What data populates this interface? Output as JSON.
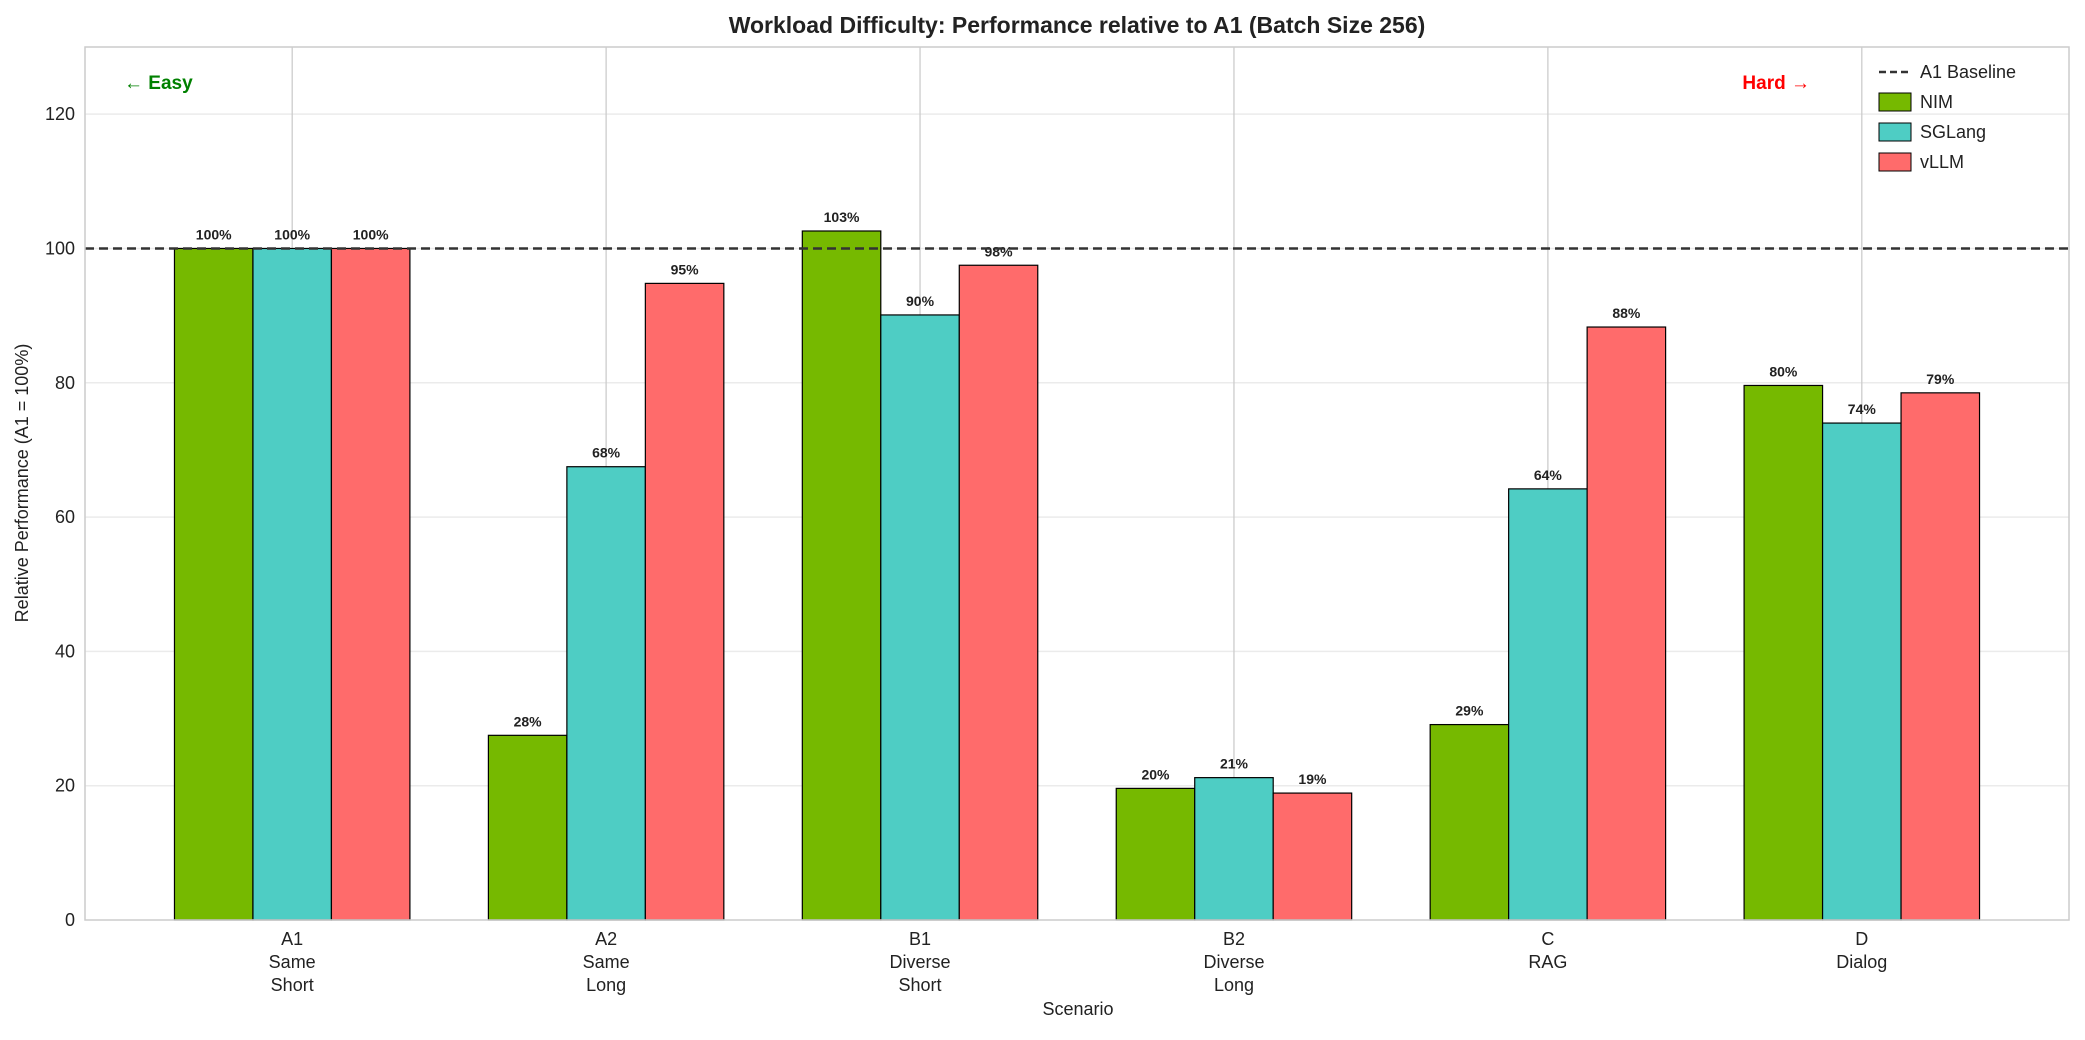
{
  "chart_data": {
    "type": "bar",
    "title": "Workload Difficulty: Performance relative to A1 (Batch Size 256)",
    "xlabel": "Scenario",
    "ylabel": "Relative Performance (A1 = 100%)",
    "categories": [
      [
        "A1",
        "Same",
        "Short"
      ],
      [
        "A2",
        "Same",
        "Long"
      ],
      [
        "B1",
        "Diverse",
        "Short"
      ],
      [
        "B2",
        "Diverse",
        "Long"
      ],
      [
        "C",
        "RAG"
      ],
      [
        "D",
        "Dialog"
      ]
    ],
    "ylim": [
      0,
      130
    ],
    "yticks": [
      0,
      20,
      40,
      60,
      80,
      100,
      120
    ],
    "grid": true,
    "legend_placement": "top-right",
    "baseline": {
      "name": "A1 Baseline",
      "value": 100,
      "color": "#333333",
      "style": "dashed"
    },
    "series": [
      {
        "name": "NIM",
        "color": "#76b900",
        "values": [
          100,
          27.5,
          102.6,
          19.6,
          29.1,
          79.6
        ],
        "labels": [
          "100%",
          "28%",
          "103%",
          "20%",
          "29%",
          "80%"
        ]
      },
      {
        "name": "SGLang",
        "color": "#4ecdc4",
        "values": [
          100,
          67.5,
          90.1,
          21.2,
          64.2,
          74.0
        ],
        "labels": [
          "100%",
          "68%",
          "90%",
          "21%",
          "64%",
          "74%"
        ]
      },
      {
        "name": "vLLM",
        "color": "#ff6b6b",
        "values": [
          100,
          94.8,
          97.5,
          18.9,
          88.3,
          78.5
        ],
        "labels": [
          "100%",
          "95%",
          "98%",
          "19%",
          "88%",
          "79%"
        ]
      }
    ],
    "annotations": [
      {
        "text": "← Easy",
        "color": "#008000",
        "position": "top-left"
      },
      {
        "text": "Hard →",
        "color": "#ff0000",
        "position": "top-right"
      }
    ]
  }
}
